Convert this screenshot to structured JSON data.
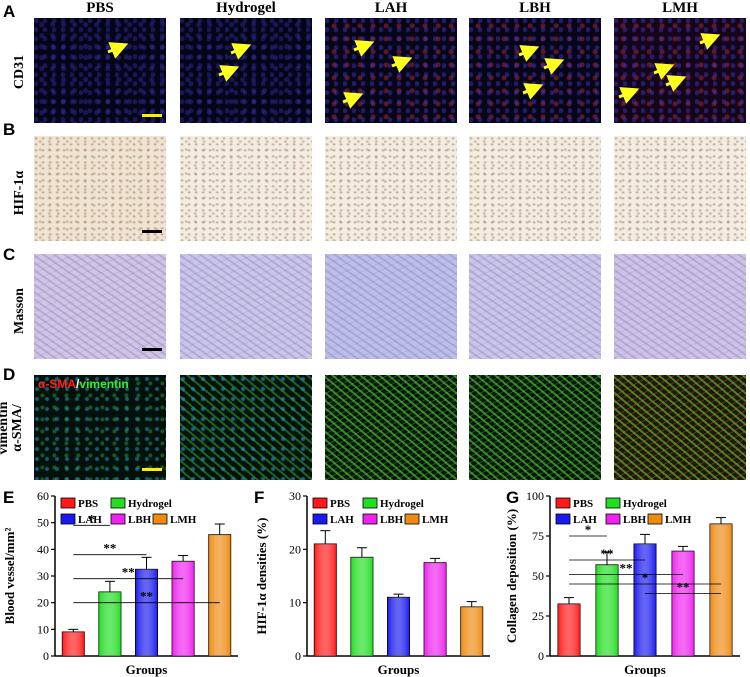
{
  "panels": {
    "A": "A",
    "B": "B",
    "C": "C",
    "D": "D",
    "E": "E",
    "F": "F",
    "G": "G"
  },
  "columns": [
    "PBS",
    "Hydrogel",
    "LAH",
    "LBH",
    "LMH"
  ],
  "rows": {
    "cd31": "CD31",
    "hif": "HIF-1α",
    "masson": "Masson",
    "sma": "α-SMA/\nvimentin",
    "sma_line1": "α-SMA/",
    "sma_line2": "vimentin"
  },
  "overlay": {
    "alpha_sma": "α-SMA",
    "slash": "/",
    "vimentin": "vimentin"
  },
  "colors": {
    "PBS": "#ff1a1a",
    "Hydrogel": "#22dd22",
    "LAH": "#1a1aee",
    "LBH": "#ee22ee",
    "LMH": "#ee8a11",
    "arrow": "#ffff22",
    "scalebar_yellow": "#ffee00",
    "scalebar_black": "#000000"
  },
  "chart_data": [
    {
      "type": "bar",
      "panel": "E",
      "categories": [
        "PBS",
        "Hydrogel",
        "LAH",
        "LBH",
        "LMH"
      ],
      "values": [
        9,
        24,
        32.5,
        35.5,
        45.5
      ],
      "errors": [
        1,
        4,
        4.5,
        2.2,
        4
      ],
      "xlabel": "Groups",
      "ylabel": "Blood vessel/mm²",
      "ylim": [
        0,
        60
      ],
      "yticks": [
        0,
        10,
        20,
        30,
        40,
        50,
        60
      ],
      "legend": [
        "PBS",
        "Hydrogel",
        "LAH",
        "LBH",
        "LMH"
      ],
      "significance": [
        "*",
        "**",
        "**",
        "**"
      ]
    },
    {
      "type": "bar",
      "panel": "F",
      "categories": [
        "PBS",
        "Hydrogel",
        "LAH",
        "LBH",
        "LMH"
      ],
      "values": [
        21,
        18.5,
        11,
        17.5,
        9.2
      ],
      "errors": [
        2.5,
        1.8,
        0.6,
        0.8,
        1.0
      ],
      "xlabel": "Groups",
      "ylabel": "HIF-1α densities (%)",
      "ylim": [
        0,
        30
      ],
      "yticks": [
        0,
        10,
        20,
        30
      ],
      "legend": [
        "PBS",
        "Hydrogel",
        "LAH",
        "LBH",
        "LMH"
      ],
      "significance": [
        "**",
        "**"
      ]
    },
    {
      "type": "bar",
      "panel": "G",
      "categories": [
        "PBS",
        "Hydrogel",
        "LAH",
        "LBH",
        "LMH"
      ],
      "values": [
        32.5,
        57,
        70,
        65.5,
        82.5
      ],
      "errors": [
        4,
        8,
        6,
        3,
        4
      ],
      "xlabel": "Groups",
      "ylabel": "Collagen deposition (%)",
      "ylim": [
        0,
        100
      ],
      "yticks": [
        0,
        25,
        50,
        75,
        100
      ],
      "legend": [
        "PBS",
        "Hydrogel",
        "LAH",
        "LBH",
        "LMH"
      ],
      "significance": [
        "*",
        "**",
        "**",
        "*",
        "**"
      ]
    }
  ]
}
